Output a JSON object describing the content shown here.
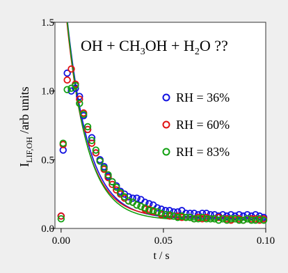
{
  "chart_data": {
    "type": "scatter",
    "title_parts": {
      "a": "OH + CH",
      "sub1": "3",
      "b": "OH + H",
      "sub2": "2",
      "c": "O ??"
    },
    "ylabel_parts": {
      "main": "I",
      "sub": "LIF,OH",
      "rest": " /arb units"
    },
    "xlabel": "t / s",
    "xlim": [
      -0.003,
      0.1
    ],
    "ylim": [
      0.0,
      1.5
    ],
    "xticks": [
      0.0,
      0.05,
      0.1
    ],
    "xtick_labels": [
      "0.00",
      "0.05",
      "0.10"
    ],
    "yticks": [
      0.0,
      0.5,
      1.0,
      1.5
    ],
    "ytick_labels": [
      "0.0",
      "0.5",
      "1.0",
      "1.5"
    ],
    "grid": false,
    "legend_position": "right",
    "series": [
      {
        "name": "RH = 36%",
        "color": "#1010e0",
        "marker": "open-circle",
        "fit": {
          "A": 1.55,
          "k": 95,
          "t0": 0.0023,
          "c": 0.07
        },
        "x": [
          0.0,
          0.001,
          0.003,
          0.005,
          0.007,
          0.009,
          0.011,
          0.013,
          0.015,
          0.017,
          0.019,
          0.021,
          0.023,
          0.025,
          0.027,
          0.029,
          0.031,
          0.033,
          0.035,
          0.037,
          0.039,
          0.041,
          0.043,
          0.045,
          0.047,
          0.049,
          0.051,
          0.053,
          0.055,
          0.057,
          0.059,
          0.061,
          0.063,
          0.065,
          0.067,
          0.069,
          0.071,
          0.073,
          0.075,
          0.077,
          0.079,
          0.081,
          0.083,
          0.085,
          0.087,
          0.089,
          0.091,
          0.093,
          0.095,
          0.097,
          0.099
        ],
        "y": [
          0.09,
          0.57,
          1.13,
          1.0,
          1.02,
          0.96,
          0.82,
          0.72,
          0.66,
          0.55,
          0.5,
          0.45,
          0.38,
          0.34,
          0.31,
          0.27,
          0.25,
          0.23,
          0.22,
          0.22,
          0.21,
          0.19,
          0.18,
          0.17,
          0.15,
          0.14,
          0.13,
          0.13,
          0.12,
          0.12,
          0.13,
          0.11,
          0.11,
          0.11,
          0.1,
          0.11,
          0.11,
          0.1,
          0.1,
          0.09,
          0.1,
          0.09,
          0.1,
          0.09,
          0.1,
          0.09,
          0.1,
          0.09,
          0.1,
          0.09,
          0.08
        ]
      },
      {
        "name": "RH = 60%",
        "color": "#e01010",
        "marker": "open-circle",
        "fit": {
          "A": 1.5,
          "k": 100,
          "t0": 0.0023,
          "c": 0.08
        },
        "x": [
          0.0,
          0.001,
          0.003,
          0.005,
          0.007,
          0.009,
          0.011,
          0.013,
          0.015,
          0.017,
          0.019,
          0.021,
          0.023,
          0.025,
          0.027,
          0.029,
          0.031,
          0.033,
          0.035,
          0.037,
          0.039,
          0.041,
          0.043,
          0.045,
          0.047,
          0.049,
          0.051,
          0.053,
          0.055,
          0.057,
          0.059,
          0.061,
          0.063,
          0.065,
          0.067,
          0.069,
          0.071,
          0.073,
          0.075,
          0.077,
          0.079,
          0.081,
          0.083,
          0.085,
          0.087,
          0.089,
          0.091,
          0.093,
          0.095,
          0.097,
          0.099
        ],
        "y": [
          0.09,
          0.61,
          1.08,
          1.16,
          1.05,
          0.94,
          0.84,
          0.72,
          0.62,
          0.55,
          0.49,
          0.43,
          0.37,
          0.32,
          0.28,
          0.25,
          0.22,
          0.2,
          0.19,
          0.17,
          0.16,
          0.14,
          0.14,
          0.12,
          0.12,
          0.1,
          0.1,
          0.09,
          0.09,
          0.09,
          0.08,
          0.08,
          0.08,
          0.07,
          0.08,
          0.07,
          0.08,
          0.07,
          0.07,
          0.08,
          0.07,
          0.07,
          0.06,
          0.07,
          0.07,
          0.06,
          0.07,
          0.07,
          0.07,
          0.06,
          0.07
        ]
      },
      {
        "name": "RH = 83%",
        "color": "#10a010",
        "marker": "open-circle",
        "fit": {
          "A": 1.6,
          "k": 100,
          "t0": 0.002,
          "c": 0.06
        },
        "x": [
          0.0,
          0.001,
          0.003,
          0.005,
          0.007,
          0.009,
          0.011,
          0.013,
          0.015,
          0.017,
          0.019,
          0.021,
          0.023,
          0.025,
          0.027,
          0.029,
          0.031,
          0.033,
          0.035,
          0.037,
          0.039,
          0.041,
          0.043,
          0.045,
          0.047,
          0.049,
          0.051,
          0.053,
          0.055,
          0.057,
          0.059,
          0.061,
          0.063,
          0.065,
          0.067,
          0.069,
          0.071,
          0.073,
          0.075,
          0.077,
          0.079,
          0.081,
          0.083,
          0.085,
          0.087,
          0.089,
          0.091,
          0.093,
          0.095,
          0.097,
          0.099
        ],
        "y": [
          0.07,
          0.62,
          1.01,
          1.02,
          1.04,
          0.91,
          0.83,
          0.74,
          0.64,
          0.57,
          0.49,
          0.44,
          0.39,
          0.34,
          0.3,
          0.26,
          0.23,
          0.2,
          0.19,
          0.17,
          0.16,
          0.15,
          0.13,
          0.13,
          0.12,
          0.11,
          0.1,
          0.1,
          0.09,
          0.08,
          0.09,
          0.08,
          0.08,
          0.07,
          0.07,
          0.08,
          0.07,
          0.07,
          0.07,
          0.06,
          0.07,
          0.06,
          0.07,
          0.07,
          0.06,
          0.06,
          0.07,
          0.06,
          0.06,
          0.07,
          0.06
        ]
      }
    ]
  }
}
